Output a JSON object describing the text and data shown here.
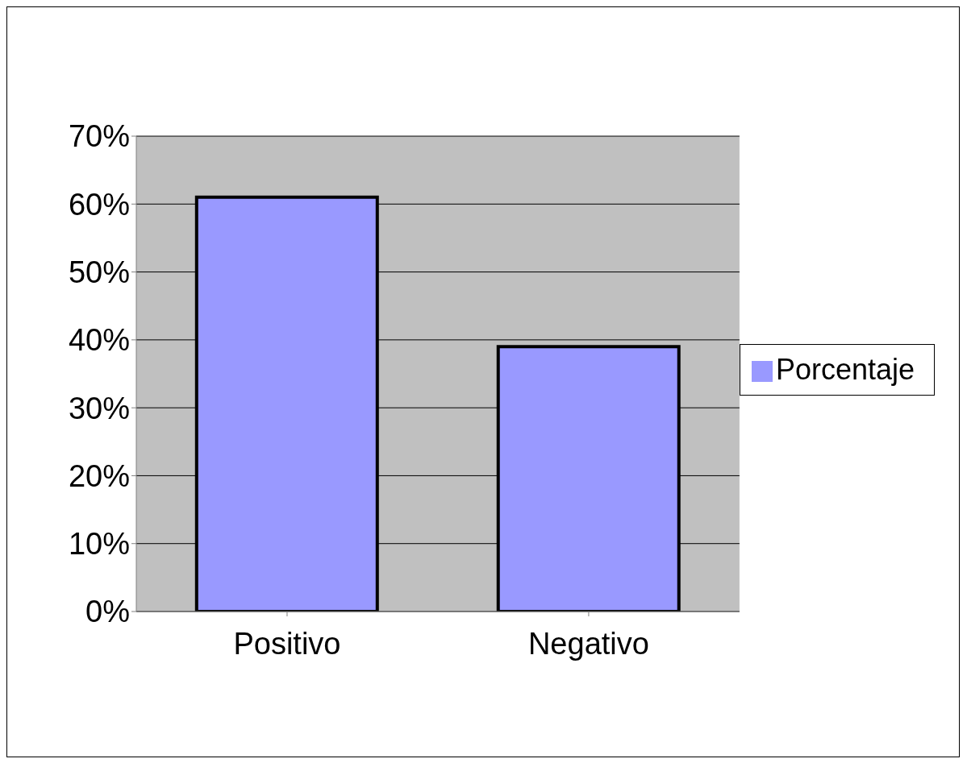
{
  "chart_data": {
    "type": "bar",
    "categories": [
      "Positivo",
      "Negativo"
    ],
    "series": [
      {
        "name": "Porcentaje",
        "color": "#9999ff",
        "values": [
          61,
          39
        ]
      }
    ],
    "ylim": [
      0,
      70
    ],
    "yticks": [
      {
        "value": 0,
        "label": "0%"
      },
      {
        "value": 10,
        "label": "10%"
      },
      {
        "value": 20,
        "label": "20%"
      },
      {
        "value": 30,
        "label": "30%"
      },
      {
        "value": 40,
        "label": "40%"
      },
      {
        "value": 50,
        "label": "50%"
      },
      {
        "value": 60,
        "label": "60%"
      },
      {
        "value": 70,
        "label": "70%"
      }
    ],
    "grid": "y",
    "legend": "right"
  }
}
